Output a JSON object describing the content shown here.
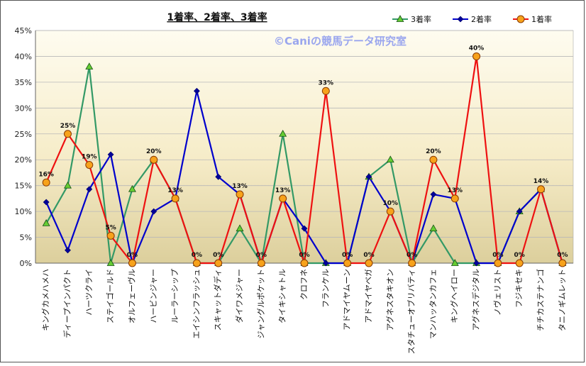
{
  "chart_data": {
    "type": "line",
    "title": "1着率、2着率、3着率",
    "watermark": "©Caniの競馬データ研究室",
    "categories": [
      "キングカメハメハ",
      "ディープインパクト",
      "ハーツクライ",
      "ステイゴールド",
      "オルフェーヴル",
      "ハービンジャー",
      "ルーラーシップ",
      "エイシンフラッシュ",
      "スキャットダディ",
      "ダイワメジャー",
      "ジャングルポケット",
      "タイキシャトル",
      "クロフネ",
      "フランケル",
      "アドマイヤムーン",
      "アドマイヤベガ",
      "アグネスタキオン",
      "スタチューオブリバティ",
      "マンハッタンカフェ",
      "キングヘイロー",
      "アグネスデジタル",
      "ノヴェリスト",
      "フジキセキ",
      "チチカステナンゴ",
      "タニノギムレット"
    ],
    "y_ticks": [
      "0%",
      "5%",
      "10%",
      "15%",
      "20%",
      "25%",
      "30%",
      "35%",
      "40%",
      "45%"
    ],
    "ylim": [
      0,
      45
    ],
    "grid": true,
    "legend_position": "top-right",
    "series": [
      {
        "name": "3着率",
        "color": "#339966",
        "marker": "triangle",
        "marker_fill": "#66cc33",
        "values": [
          7.7,
          15,
          38,
          0,
          14.3,
          20,
          12.5,
          0,
          0,
          6.7,
          0,
          25,
          0,
          0,
          0,
          16.7,
          20,
          0,
          6.7,
          0,
          0,
          0,
          10,
          14.3,
          0
        ]
      },
      {
        "name": "2着率",
        "color": "#0000cc",
        "marker": "diamond",
        "marker_fill": "#000099",
        "values": [
          11.8,
          2.5,
          14.3,
          21,
          0,
          10,
          12.5,
          33.3,
          16.7,
          13.3,
          0,
          12.5,
          6.7,
          0,
          0,
          16.7,
          10,
          0,
          13.3,
          12.5,
          0,
          0,
          10,
          14.3,
          0
        ]
      },
      {
        "name": "1着率",
        "color": "#ee1111",
        "marker": "circle",
        "marker_fill": "#f7a21b",
        "values": [
          15.6,
          25,
          19,
          5.3,
          0,
          20,
          12.5,
          0,
          0,
          13.3,
          0,
          12.5,
          0,
          33.3,
          0,
          0,
          10,
          0,
          20,
          12.5,
          40,
          0,
          0,
          14.3,
          0
        ],
        "data_labels": [
          "16%",
          "25%",
          "19%",
          "5%",
          "0%",
          "20%",
          "13%",
          "0%",
          "0%",
          "13%",
          "0%",
          "13%",
          "0%",
          "33%",
          "0%",
          "0%",
          "10%",
          "0%",
          "20%",
          "13%",
          "40%",
          "0%",
          "0%",
          "14%",
          "0%"
        ]
      }
    ]
  }
}
